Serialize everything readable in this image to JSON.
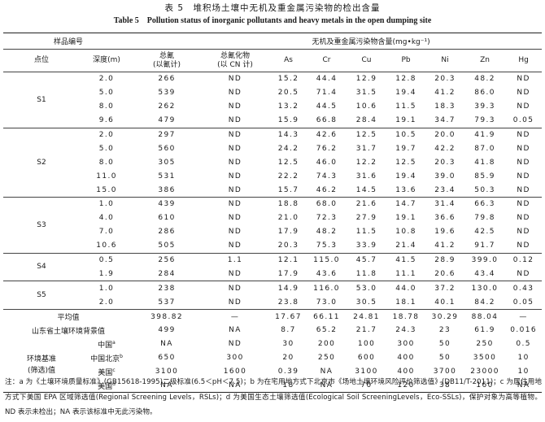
{
  "caption": {
    "cn": "表 5　堆积场土壤中无机及重金属污染物的检出含量",
    "en": "Table 5　Pollution status of inorganic pollutants and heavy metals in the open dumping site"
  },
  "header": {
    "sample": "样品编号",
    "group": "无机及重金属污染物含量(mg•kg⁻¹)",
    "point": "点位",
    "depth": "深度(m)",
    "tcn_1": "总氰",
    "tcn_2": "(以氰计)",
    "tcyd_1": "总氰化物",
    "tcyd_2": "(以 CN 计)",
    "as": "As",
    "cr": "Cr",
    "cu": "Cu",
    "pb": "Pb",
    "ni": "Ni",
    "zn": "Zn",
    "hg": "Hg"
  },
  "groups": [
    {
      "point": "S1",
      "rows": [
        [
          "2.0",
          "266",
          "ND",
          "15.2",
          "44.4",
          "12.9",
          "12.8",
          "20.3",
          "48.2",
          "ND"
        ],
        [
          "5.0",
          "539",
          "ND",
          "20.5",
          "71.4",
          "31.5",
          "19.4",
          "41.2",
          "86.0",
          "ND"
        ],
        [
          "8.0",
          "262",
          "ND",
          "13.2",
          "44.5",
          "10.6",
          "11.5",
          "18.3",
          "39.3",
          "ND"
        ],
        [
          "9.6",
          "479",
          "ND",
          "15.9",
          "66.8",
          "28.4",
          "19.1",
          "34.7",
          "79.3",
          "0.05"
        ]
      ]
    },
    {
      "point": "S2",
      "rows": [
        [
          "2.0",
          "297",
          "ND",
          "14.3",
          "42.6",
          "12.5",
          "10.5",
          "20.0",
          "41.9",
          "ND"
        ],
        [
          "5.0",
          "560",
          "ND",
          "24.2",
          "76.2",
          "31.7",
          "19.7",
          "42.2",
          "87.0",
          "ND"
        ],
        [
          "8.0",
          "305",
          "ND",
          "12.5",
          "46.0",
          "12.2",
          "12.5",
          "20.3",
          "41.8",
          "ND"
        ],
        [
          "11.0",
          "531",
          "ND",
          "22.2",
          "74.3",
          "31.6",
          "19.4",
          "39.0",
          "85.9",
          "ND"
        ],
        [
          "15.0",
          "386",
          "ND",
          "15.7",
          "46.2",
          "14.5",
          "13.6",
          "23.4",
          "50.3",
          "ND"
        ]
      ]
    },
    {
      "point": "S3",
      "rows": [
        [
          "1.0",
          "439",
          "ND",
          "18.8",
          "68.0",
          "21.6",
          "14.7",
          "31.4",
          "66.3",
          "ND"
        ],
        [
          "4.0",
          "610",
          "ND",
          "21.0",
          "72.3",
          "27.9",
          "19.1",
          "36.6",
          "79.8",
          "ND"
        ],
        [
          "7.0",
          "286",
          "ND",
          "17.9",
          "48.2",
          "11.5",
          "10.8",
          "19.6",
          "42.5",
          "ND"
        ],
        [
          "10.6",
          "505",
          "ND",
          "20.3",
          "75.3",
          "33.9",
          "21.4",
          "41.2",
          "91.7",
          "ND"
        ]
      ]
    },
    {
      "point": "S4",
      "rows": [
        [
          "0.5",
          "256",
          "1.1",
          "12.1",
          "115.0",
          "45.7",
          "41.5",
          "28.9",
          "399.0",
          "0.12"
        ],
        [
          "1.9",
          "284",
          "ND",
          "17.9",
          "43.6",
          "11.8",
          "11.1",
          "20.6",
          "43.4",
          "ND"
        ]
      ]
    },
    {
      "point": "S5",
      "rows": [
        [
          "1.0",
          "238",
          "ND",
          "14.9",
          "116.0",
          "53.0",
          "44.0",
          "37.2",
          "130.0",
          "0.43"
        ],
        [
          "2.0",
          "537",
          "ND",
          "23.8",
          "73.0",
          "30.5",
          "18.1",
          "40.1",
          "84.2",
          "0.05"
        ]
      ]
    }
  ],
  "mean": {
    "label": "平均值",
    "values": [
      "398.82",
      "—",
      "17.67",
      "66.11",
      "24.81",
      "18.78",
      "30.29",
      "88.04",
      "—"
    ]
  },
  "background": {
    "label": "山东省土壤环境背景值",
    "values": [
      "499",
      "NA",
      "8.7",
      "65.2",
      "21.7",
      "24.3",
      "23",
      "61.9",
      "0.016"
    ]
  },
  "standards": {
    "label_1": "环境基准",
    "label_2": "(筛选)值",
    "rows": [
      {
        "name": "中国",
        "sup": "a",
        "values": [
          "NA",
          "ND",
          "30",
          "200",
          "100",
          "300",
          "50",
          "250",
          "0.5"
        ]
      },
      {
        "name": "中国北京",
        "sup": "b",
        "values": [
          "650",
          "300",
          "20",
          "250",
          "600",
          "400",
          "50",
          "3500",
          "10"
        ]
      },
      {
        "name": "美国",
        "sup": "c",
        "values": [
          "3100",
          "1600",
          "0.39",
          "NA",
          "3100",
          "400",
          "3700",
          "23000",
          "10"
        ]
      },
      {
        "name": "美国",
        "sup": "d",
        "values": [
          "NA",
          "NA",
          "18",
          "NA",
          "70",
          "120",
          "38",
          "160",
          "NA"
        ]
      }
    ]
  },
  "note": "注：a 为《土壤环境质量标准》(GB15618-1995)二级标准(6.5＜pH＜7.5)；b 为在宅用地方式下北京市《场地土壤环境风险评价筛选值》(DB11/T-2011)；c 为居住用地方式下美国 EPA 区域筛选值(Regional Screening Levels，RSLs)；d 为美国生态土壤筛选值(Ecological Soil ScreeningLevels，Eco-SSLs)，保护对象为高等植物。ND 表示未检出；NA 表示该标准中无此污染物。"
}
